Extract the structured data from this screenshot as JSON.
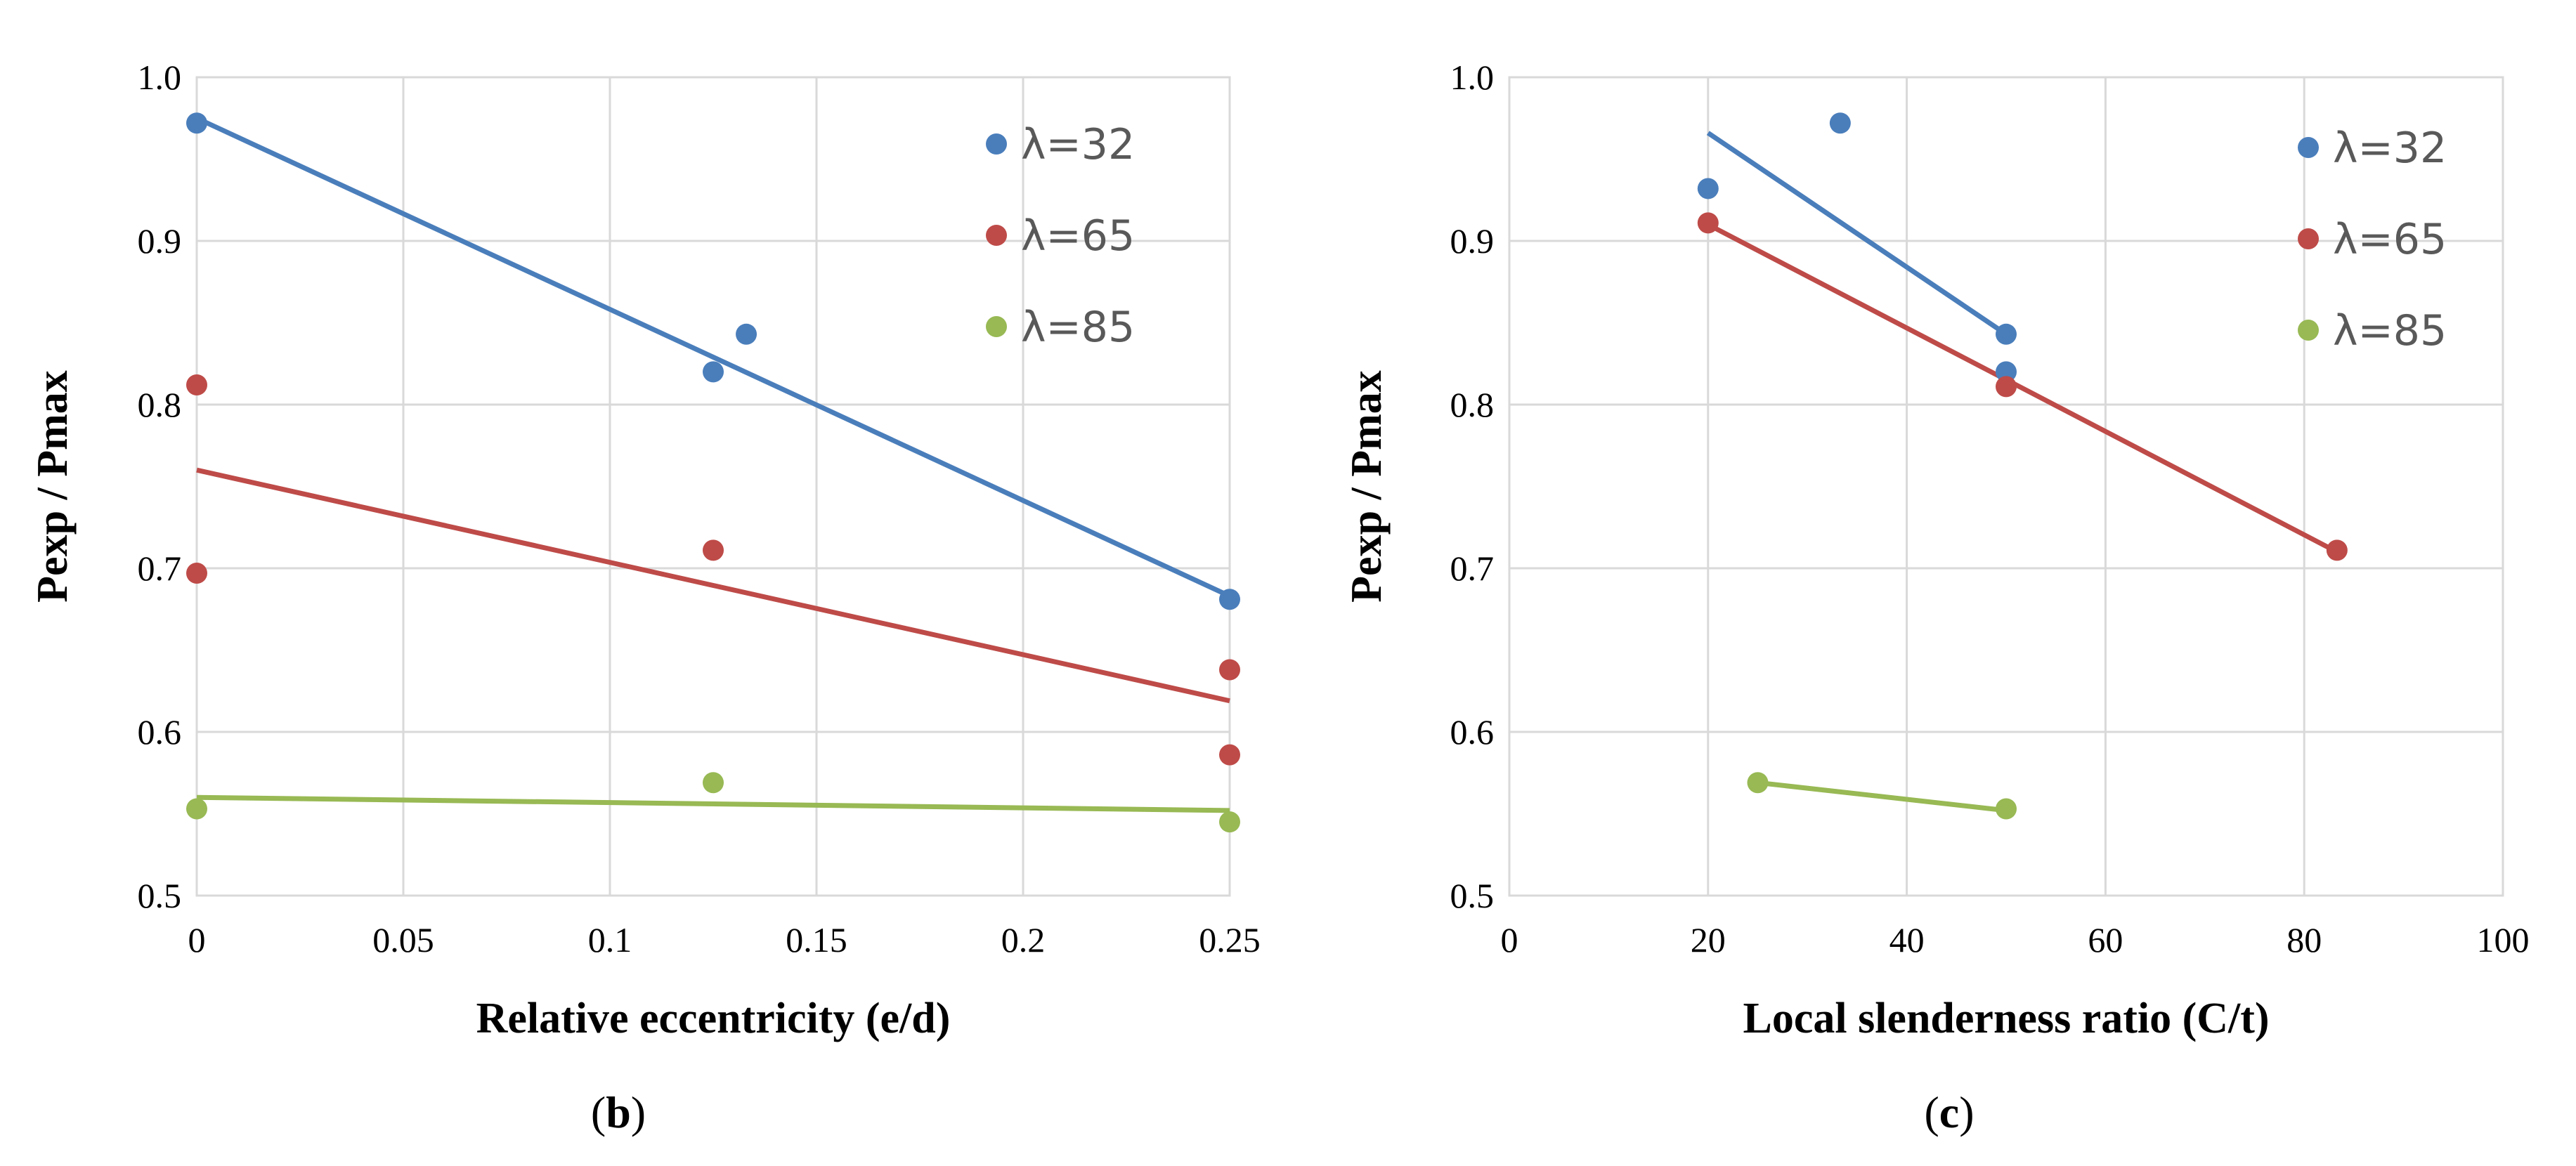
{
  "chart_data": [
    {
      "type": "scatter",
      "panel": "b",
      "xlabel": "Relative eccentricity (e/d)",
      "ylabel": "Pexp / Pmax",
      "xlim": [
        0,
        0.25
      ],
      "ylim": [
        0.5,
        1.0
      ],
      "x_ticks": [
        "0",
        "0.05",
        "0.1",
        "0.15",
        "0.2",
        "0.25"
      ],
      "y_ticks": [
        "0.5",
        "0.6",
        "0.7",
        "0.8",
        "0.9",
        "1.0"
      ],
      "grid": true,
      "legend_position": "top-right",
      "series": [
        {
          "name": "λ=32",
          "color": "#4a7ebb",
          "points": [
            [
              0,
              0.972
            ],
            [
              0.125,
              0.82
            ],
            [
              0.133,
              0.843
            ],
            [
              0.25,
              0.681
            ]
          ],
          "trendline": [
            [
              0,
              0.975
            ],
            [
              0.25,
              0.683
            ]
          ]
        },
        {
          "name": "λ=65",
          "color": "#be4b48",
          "points": [
            [
              0,
              0.812
            ],
            [
              0,
              0.697
            ],
            [
              0.125,
              0.711
            ],
            [
              0.25,
              0.638
            ],
            [
              0.25,
              0.586
            ]
          ],
          "trendline": [
            [
              0,
              0.76
            ],
            [
              0.25,
              0.619
            ]
          ]
        },
        {
          "name": "λ=85",
          "color": "#98b954",
          "points": [
            [
              0,
              0.553
            ],
            [
              0.125,
              0.569
            ],
            [
              0.25,
              0.545
            ]
          ],
          "trendline": [
            [
              0,
              0.56
            ],
            [
              0.25,
              0.552
            ]
          ]
        }
      ]
    },
    {
      "type": "scatter",
      "panel": "c",
      "xlabel": "Local slenderness ratio (C/t)",
      "ylabel": "Pexp / Pmax",
      "xlim": [
        0,
        100
      ],
      "ylim": [
        0.5,
        1.0
      ],
      "x_ticks": [
        "0",
        "20",
        "40",
        "60",
        "80",
        "100"
      ],
      "y_ticks": [
        "0.5",
        "0.6",
        "0.7",
        "0.8",
        "0.9",
        "1.0"
      ],
      "grid": true,
      "legend_position": "top-right",
      "series": [
        {
          "name": "λ=32",
          "color": "#4a7ebb",
          "points": [
            [
              20,
              0.932
            ],
            [
              33.3,
              0.972
            ],
            [
              50,
              0.843
            ],
            [
              50,
              0.82
            ]
          ],
          "trendline": [
            [
              20,
              0.966
            ],
            [
              50,
              0.843
            ]
          ]
        },
        {
          "name": "λ=65",
          "color": "#be4b48",
          "points": [
            [
              20,
              0.911
            ],
            [
              50,
              0.811
            ],
            [
              83.3,
              0.711
            ]
          ],
          "trendline": [
            [
              20,
              0.91
            ],
            [
              83.3,
              0.71
            ]
          ]
        },
        {
          "name": "λ=85",
          "color": "#98b954",
          "points": [
            [
              25,
              0.569
            ],
            [
              50,
              0.553
            ]
          ],
          "trendline": [
            [
              25,
              0.569
            ],
            [
              50,
              0.552
            ]
          ]
        }
      ]
    }
  ],
  "captions": {
    "b": {
      "open": "(",
      "letter": "b",
      "close": ")"
    },
    "c": {
      "open": "(",
      "letter": "c",
      "close": ")"
    }
  }
}
